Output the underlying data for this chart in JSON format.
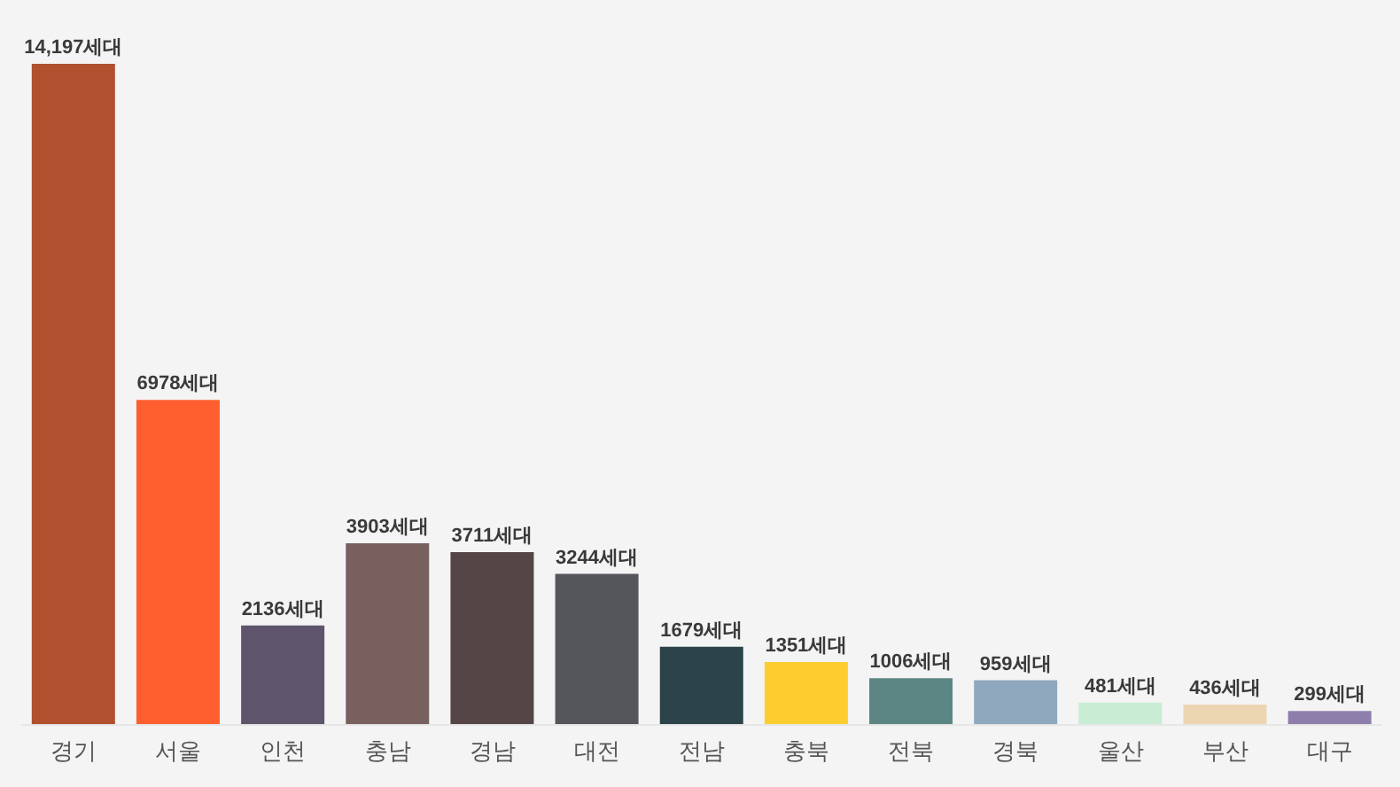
{
  "chart_data": {
    "type": "bar",
    "categories": [
      "경기",
      "서울",
      "인천",
      "충남",
      "경남",
      "대전",
      "전남",
      "충북",
      "전북",
      "경북",
      "울산",
      "부산",
      "대구"
    ],
    "values": [
      14197,
      6978,
      2136,
      3903,
      3711,
      3244,
      1679,
      1351,
      1006,
      959,
      481,
      436,
      299
    ],
    "colors": [
      "#b0502f",
      "#ff5f2e",
      "#5e546b",
      "#78605e",
      "#554546",
      "#55565b",
      "#2c4349",
      "#fdcd2f",
      "#5b8683",
      "#8fa8be",
      "#c8ecd4",
      "#ecd6b2",
      "#8e7eac"
    ],
    "value_labels": [
      "14,197세대",
      "6978세대",
      "2136세대",
      "3903세대",
      "3711세대",
      "3244세대",
      "1679세대",
      "1351세대",
      "1006세대",
      "959세대",
      "481세대",
      "436세대",
      "299세대"
    ]
  }
}
